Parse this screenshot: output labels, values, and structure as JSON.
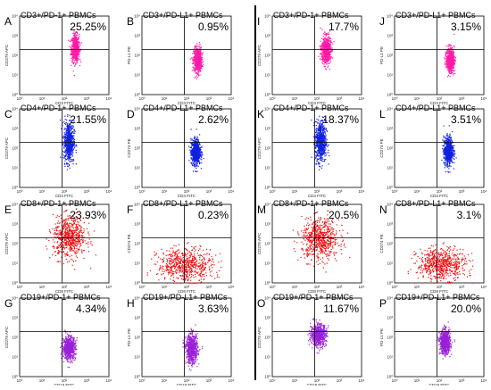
{
  "figure": {
    "divider_color": "#000000",
    "panel_colors": {
      "CD3": "#ff1aa8",
      "CD4": "#1020e0",
      "CD8": "#ee1010",
      "CD19": "#9a20d8"
    },
    "tick_labels": [
      "10⁰",
      "10¹",
      "10²",
      "10³",
      "10⁴"
    ]
  },
  "chart_data": [
    {
      "type": "scatter",
      "letter": "A",
      "title": "CD3+/PD-1+ PBMCs",
      "percent": "25.25%",
      "population": "CD3",
      "xlabel": "CD3 FITC",
      "ylabel": "CD279 APC",
      "xlim": [
        1,
        10000
      ],
      "ylim": [
        1,
        10000
      ],
      "scale": "log",
      "gate": [
        80,
        200
      ],
      "cloud": {
        "x": [
          200,
          450
        ],
        "y": [
          50,
          1200
        ]
      }
    },
    {
      "type": "scatter",
      "letter": "B",
      "title": "CD3+/PD-L1+ PBMCs",
      "percent": "0.95%",
      "population": "CD3",
      "xlabel": "CD3 FITC",
      "ylabel": "PD-L1 PE",
      "xlim": [
        1,
        10000
      ],
      "ylim": [
        1,
        10000
      ],
      "scale": "log",
      "gate": [
        80,
        200
      ],
      "cloud": {
        "x": [
          200,
          450
        ],
        "y": [
          15,
          250
        ]
      }
    },
    {
      "type": "scatter",
      "letter": "C",
      "title": "CD4+/PD-1+ PBMCs",
      "percent": "21.55%",
      "population": "CD4",
      "xlabel": "CD4 FITC",
      "ylabel": "CD279 APC",
      "xlim": [
        1,
        10000
      ],
      "ylim": [
        1,
        10000
      ],
      "scale": "log",
      "gate": [
        80,
        200
      ],
      "cloud": {
        "x": [
          90,
          260
        ],
        "y": [
          20,
          2500
        ]
      }
    },
    {
      "type": "scatter",
      "letter": "D",
      "title": "CD4+/PD-L1+ PBMCs",
      "percent": "2.62%",
      "population": "CD4",
      "xlabel": "CD4 FITC",
      "ylabel": "CD274 PE",
      "xlim": [
        1,
        10000
      ],
      "ylim": [
        1,
        10000
      ],
      "scale": "log",
      "gate": [
        80,
        200
      ],
      "cloud": {
        "x": [
          150,
          400
        ],
        "y": [
          15,
          300
        ]
      }
    },
    {
      "type": "scatter",
      "letter": "E",
      "title": "CD8+/PD-1+ PBMCs",
      "percent": "23.93%",
      "population": "CD8",
      "xlabel": "CD8 FITC",
      "ylabel": "CD279 APC",
      "xlim": [
        1,
        10000
      ],
      "ylim": [
        1,
        10000
      ],
      "scale": "log",
      "gate": [
        80,
        200
      ],
      "cloud": {
        "x": [
          30,
          900
        ],
        "y": [
          20,
          2500
        ]
      }
    },
    {
      "type": "scatter",
      "letter": "F",
      "title": "CD8+/PD-L1+ PBMCs",
      "percent": "0.23%",
      "population": "CD8",
      "xlabel": "CD8 FITC",
      "ylabel": "CD274 PE",
      "xlim": [
        1,
        10000
      ],
      "ylim": [
        1,
        10000
      ],
      "scale": "log",
      "gate": [
        80,
        200
      ],
      "cloud": {
        "x": [
          5,
          1500
        ],
        "y": [
          1.2,
          60
        ]
      }
    },
    {
      "type": "scatter",
      "letter": "G",
      "title": "CD19+/PD-1+ PBMCs",
      "percent": "4.34%",
      "population": "CD19",
      "xlabel": "CD19 FITC",
      "ylabel": "CD279 APC",
      "xlim": [
        1,
        10000
      ],
      "ylim": [
        1,
        10000
      ],
      "scale": "log",
      "gate": [
        80,
        200
      ],
      "cloud": {
        "x": [
          80,
          300
        ],
        "y": [
          8,
          120
        ]
      }
    },
    {
      "type": "scatter",
      "letter": "H",
      "title": "CD19+/PD-L1+ PBMCs",
      "percent": "3.63%",
      "population": "CD19",
      "xlabel": "CD19 FITC",
      "ylabel": "PD-L1 PE",
      "xlim": [
        1,
        10000
      ],
      "ylim": [
        1,
        10000
      ],
      "scale": "log",
      "gate": [
        80,
        200
      ],
      "cloud": {
        "x": [
          90,
          300
        ],
        "y": [
          5,
          150
        ]
      }
    },
    {
      "type": "scatter",
      "letter": "I",
      "title": "CD3+/PD-1+ PBMCs",
      "percent": "17.7%",
      "population": "CD3",
      "xlabel": "CD3 FITC",
      "ylabel": "CD279 APC",
      "xlim": [
        1,
        10000
      ],
      "ylim": [
        1,
        10000
      ],
      "scale": "log",
      "gate": [
        80,
        200
      ],
      "cloud": {
        "x": [
          150,
          400
        ],
        "y": [
          40,
          1000
        ]
      }
    },
    {
      "type": "scatter",
      "letter": "J",
      "title": "CD3+/PD-L1+ PBMCs",
      "percent": "3.15%",
      "population": "CD3",
      "xlabel": "CD3 FITC",
      "ylabel": "PD-L1 PE",
      "xlim": [
        1,
        10000
      ],
      "ylim": [
        1,
        10000
      ],
      "scale": "log",
      "gate": [
        80,
        200
      ],
      "cloud": {
        "x": [
          200,
          450
        ],
        "y": [
          15,
          250
        ]
      }
    },
    {
      "type": "scatter",
      "letter": "K",
      "title": "CD4+/PD-1+ PBMCs",
      "percent": "18.37%",
      "population": "CD4",
      "xlabel": "CD4 FITC",
      "ylabel": "CD279 APC",
      "xlim": [
        1,
        10000
      ],
      "ylim": [
        1,
        10000
      ],
      "scale": "log",
      "gate": [
        80,
        200
      ],
      "cloud": {
        "x": [
          80,
          250
        ],
        "y": [
          20,
          2500
        ]
      }
    },
    {
      "type": "scatter",
      "letter": "L",
      "title": "CD4+/PD-L1+ PBMCs",
      "percent": "3.51%",
      "population": "CD4",
      "xlabel": "CD4 FITC",
      "ylabel": "CD274 PE",
      "xlim": [
        1,
        10000
      ],
      "ylim": [
        1,
        10000
      ],
      "scale": "log",
      "gate": [
        80,
        200
      ],
      "cloud": {
        "x": [
          150,
          400
        ],
        "y": [
          15,
          400
        ]
      }
    },
    {
      "type": "scatter",
      "letter": "M",
      "title": "CD8+/PD-1+ PBMCs",
      "percent": "20.5%",
      "population": "CD8",
      "xlabel": "CD8 FITC",
      "ylabel": "CD279 APC",
      "xlim": [
        1,
        10000
      ],
      "ylim": [
        1,
        10000
      ],
      "scale": "log",
      "gate": [
        80,
        200
      ],
      "cloud": {
        "x": [
          20,
          900
        ],
        "y": [
          15,
          2000
        ]
      }
    },
    {
      "type": "scatter",
      "letter": "N",
      "title": "CD8+/PD-L1+ PBMCs",
      "percent": "3.1%",
      "population": "CD8",
      "xlabel": "CD8 FITC",
      "ylabel": "CD274 PE",
      "xlim": [
        1,
        10000
      ],
      "ylim": [
        1,
        10000
      ],
      "scale": "log",
      "gate": [
        80,
        200
      ],
      "cloud": {
        "x": [
          10,
          1500
        ],
        "y": [
          1.5,
          60
        ]
      }
    },
    {
      "type": "scatter",
      "letter": "O",
      "title": "CD19+/PD-1+ PBMCs",
      "percent": "11.67%",
      "population": "CD19",
      "xlabel": "CD19 FITC",
      "ylabel": "CD279 APC",
      "xlim": [
        1,
        10000
      ],
      "ylim": [
        1,
        10000
      ],
      "scale": "log",
      "gate": [
        80,
        200
      ],
      "cloud": {
        "x": [
          50,
          250
        ],
        "y": [
          40,
          500
        ]
      }
    },
    {
      "type": "scatter",
      "letter": "P",
      "title": "CD19+/PD-L1+ PBMCs",
      "percent": "20.0%",
      "population": "CD19",
      "xlabel": "CD19 FITC",
      "ylabel": "PD-L1 PE",
      "xlim": [
        1,
        10000
      ],
      "ylim": [
        1,
        10000
      ],
      "scale": "log",
      "gate": [
        80,
        200
      ],
      "cloud": {
        "x": [
          100,
          300
        ],
        "y": [
          15,
          250
        ]
      }
    }
  ]
}
